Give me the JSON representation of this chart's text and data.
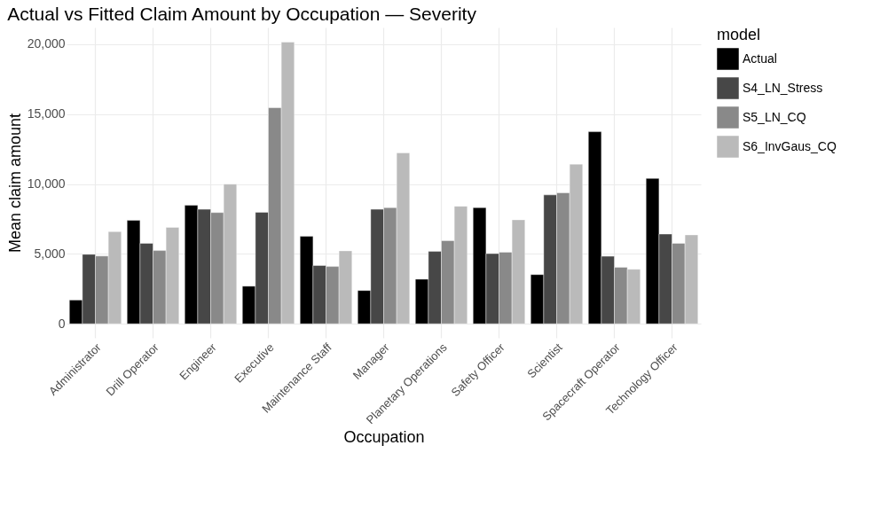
{
  "chart_data": {
    "type": "bar",
    "title": "Actual vs Fitted Claim Amount by Occupation — Severity",
    "xlabel": "Occupation",
    "ylabel": "Mean claim amount",
    "legend_title": "model",
    "categories": [
      "Administrator",
      "Drill Operator",
      "Engineer",
      "Executive",
      "Maintenance Staff",
      "Manager",
      "Planetary Operations",
      "Safety Officer",
      "Scientist",
      "Spacecraft Operator",
      "Technology Officer"
    ],
    "series": [
      {
        "name": "Actual",
        "color": "#000000",
        "values": [
          1700,
          7400,
          8480,
          2690,
          6260,
          2380,
          3190,
          8310,
          3520,
          13740,
          10400
        ]
      },
      {
        "name": "S4_LN_Stress",
        "color": "#474747",
        "values": [
          4970,
          5760,
          8190,
          7980,
          4170,
          8190,
          5180,
          5020,
          9220,
          4830,
          6420
        ]
      },
      {
        "name": "S5_LN_CQ",
        "color": "#898989",
        "values": [
          4850,
          5240,
          7960,
          15460,
          4100,
          8310,
          5950,
          5120,
          9370,
          4040,
          5760
        ]
      },
      {
        "name": "S6_InvGaus_CQ",
        "color": "#bababa",
        "values": [
          6590,
          6900,
          9990,
          20150,
          5220,
          12230,
          8410,
          7440,
          11420,
          3900,
          6360
        ]
      }
    ],
    "ylim": [
      -1000,
      21200
    ],
    "yticks": [
      {
        "value": 0,
        "label": "0"
      },
      {
        "value": 5000,
        "label": "5,000"
      },
      {
        "value": 10000,
        "label": "10,000"
      },
      {
        "value": 15000,
        "label": "15,000"
      },
      {
        "value": 20000,
        "label": "20,000"
      }
    ],
    "grid": true,
    "legend": "right"
  }
}
